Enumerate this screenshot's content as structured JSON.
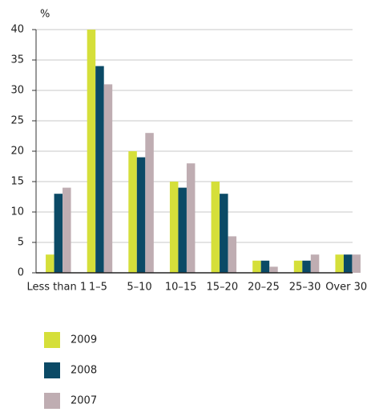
{
  "chart_data": {
    "type": "bar",
    "y_label": "%",
    "categories": [
      "Less than 1",
      "1–5",
      "5–10",
      "10–15",
      "15–20",
      "20–25",
      "25–30",
      "Over 30"
    ],
    "series": [
      {
        "name": "2009",
        "color": "#d5df3a",
        "values": [
          3,
          40,
          20,
          15,
          15,
          2,
          2,
          3
        ]
      },
      {
        "name": "2008",
        "color": "#0b4a66",
        "values": [
          13,
          34,
          19,
          14,
          13,
          2,
          2,
          3
        ]
      },
      {
        "name": "2007",
        "color": "#bfadb2",
        "values": [
          14,
          31,
          23,
          18,
          6,
          1,
          3,
          3
        ]
      }
    ],
    "ylim": [
      0,
      40
    ],
    "yticks": [
      0,
      5,
      10,
      15,
      20,
      25,
      30,
      35,
      40
    ],
    "grid": true
  }
}
